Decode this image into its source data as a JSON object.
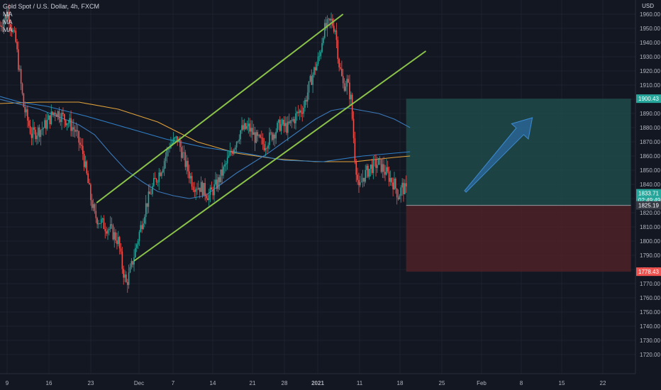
{
  "header": {
    "title": "Gold Spot / U.S. Dollar, 4h, FXCM",
    "indicators": [
      "MA",
      "MA",
      "MA"
    ],
    "currency": "USD"
  },
  "colors": {
    "background": "#131722",
    "grid": "#1e222d",
    "up": "#26a69a",
    "down": "#ef5350",
    "channel": "#8bc34a",
    "ma_orange": "#e0a23a",
    "ma_blue1": "#2f7fc7",
    "ma_blue2": "#3a78b8",
    "target_fill": "#1f4a4a",
    "stop_fill": "#4a2127",
    "arrow": "#2b6aa0",
    "axis_text": "#b2b5be"
  },
  "chart_data": {
    "type": "candlestick",
    "title": "Gold Spot / U.S. Dollar, 4h, FXCM",
    "y_range": [
      1712,
      1972
    ],
    "y_ticks": [
      1720,
      1730,
      1740,
      1750,
      1760,
      1770,
      1780,
      1790,
      1800,
      1810,
      1820,
      1830,
      1840,
      1850,
      1860,
      1870,
      1880,
      1890,
      1900,
      1910,
      1920,
      1930,
      1940,
      1950,
      1960
    ],
    "x_ticks": [
      "9",
      "16",
      "23",
      "Dec",
      "7",
      "14",
      "21",
      "28",
      "2021",
      "11",
      "18",
      "25",
      "Feb",
      "8",
      "15",
      "22"
    ],
    "price_path": [
      [
        0,
        1952
      ],
      [
        2,
        1961
      ],
      [
        4,
        1940
      ],
      [
        6,
        1895
      ],
      [
        8,
        1875
      ],
      [
        11,
        1880
      ],
      [
        14,
        1892
      ],
      [
        17,
        1885
      ],
      [
        19,
        1878
      ],
      [
        21,
        1862
      ],
      [
        23,
        1830
      ],
      [
        24,
        1818
      ],
      [
        26,
        1812
      ],
      [
        28,
        1808
      ],
      [
        30,
        1800
      ],
      [
        31,
        1782
      ],
      [
        32,
        1770
      ],
      [
        33,
        1778
      ],
      [
        35,
        1802
      ],
      [
        37,
        1825
      ],
      [
        39,
        1840
      ],
      [
        41,
        1852
      ],
      [
        43,
        1868
      ],
      [
        45,
        1872
      ],
      [
        47,
        1855
      ],
      [
        49,
        1840
      ],
      [
        51,
        1838
      ],
      [
        53,
        1832
      ],
      [
        55,
        1840
      ],
      [
        57,
        1852
      ],
      [
        59,
        1865
      ],
      [
        61,
        1878
      ],
      [
        63,
        1880
      ],
      [
        65,
        1872
      ],
      [
        67,
        1868
      ],
      [
        69,
        1875
      ],
      [
        71,
        1882
      ],
      [
        73,
        1880
      ],
      [
        75,
        1888
      ],
      [
        77,
        1895
      ],
      [
        79,
        1915
      ],
      [
        81,
        1930
      ],
      [
        82,
        1948
      ],
      [
        84,
        1955
      ],
      [
        85,
        1950
      ],
      [
        86,
        1925
      ],
      [
        87,
        1910
      ],
      [
        88,
        1912
      ],
      [
        89,
        1900
      ],
      [
        90,
        1860
      ],
      [
        91,
        1835
      ],
      [
        92,
        1845
      ],
      [
        94,
        1852
      ],
      [
        96,
        1855
      ],
      [
        98,
        1848
      ],
      [
        100,
        1840
      ],
      [
        101,
        1832
      ],
      [
        102,
        1838
      ],
      [
        103,
        1835
      ]
    ],
    "moving_averages": [
      {
        "color": "#e0a23a",
        "points": [
          [
            0,
            1897
          ],
          [
            10,
            1898
          ],
          [
            20,
            1898
          ],
          [
            30,
            1893
          ],
          [
            40,
            1884
          ],
          [
            50,
            1870
          ],
          [
            60,
            1862
          ],
          [
            70,
            1858
          ],
          [
            80,
            1856
          ],
          [
            90,
            1856
          ],
          [
            100,
            1859
          ],
          [
            104,
            1860
          ]
        ]
      },
      {
        "color": "#2f7fc7",
        "points": [
          [
            0,
            1902
          ],
          [
            5,
            1898
          ],
          [
            12,
            1895
          ],
          [
            22,
            1888
          ],
          [
            32,
            1880
          ],
          [
            42,
            1872
          ],
          [
            52,
            1866
          ],
          [
            62,
            1862
          ],
          [
            72,
            1857
          ],
          [
            82,
            1856
          ],
          [
            92,
            1860
          ],
          [
            104,
            1863
          ]
        ]
      },
      {
        "color": "#3a78b8",
        "points": [
          [
            0,
            1900
          ],
          [
            10,
            1893
          ],
          [
            20,
            1882
          ],
          [
            24,
            1875
          ],
          [
            28,
            1862
          ],
          [
            32,
            1850
          ],
          [
            36,
            1842
          ],
          [
            40,
            1835
          ],
          [
            44,
            1832
          ],
          [
            48,
            1830
          ],
          [
            52,
            1832
          ],
          [
            56,
            1840
          ],
          [
            60,
            1848
          ],
          [
            64,
            1855
          ],
          [
            68,
            1862
          ],
          [
            72,
            1870
          ],
          [
            76,
            1878
          ],
          [
            80,
            1886
          ],
          [
            84,
            1892
          ],
          [
            88,
            1894
          ],
          [
            92,
            1892
          ],
          [
            96,
            1890
          ],
          [
            100,
            1886
          ],
          [
            104,
            1880
          ]
        ]
      }
    ],
    "channel_lines": [
      [
        [
          24.5,
          1827
        ],
        [
          87,
          1960
        ]
      ],
      [
        [
          34,
          1786
        ],
        [
          108,
          1934
        ]
      ]
    ],
    "long_position": {
      "entry": 1825.19,
      "target": 1900.43,
      "stop": 1778.43,
      "x_start": 103,
      "x_end": 160
    },
    "projection_arrow": {
      "from": [
        118,
        1835
      ],
      "to": [
        135,
        1887
      ]
    },
    "price_labels": [
      {
        "text": "1900.43",
        "value": 1900.43,
        "bg": "#26a69a"
      },
      {
        "text": "1833.71",
        "value": 1833.71,
        "bg": "#26a69a"
      },
      {
        "text": "02:49:49",
        "value": 1829,
        "bg": "#26a69a"
      },
      {
        "text": "1825.19",
        "value": 1825.19,
        "bg": "#363a45"
      },
      {
        "text": "1778.43",
        "value": 1778.43,
        "bg": "#ef5350"
      }
    ]
  }
}
